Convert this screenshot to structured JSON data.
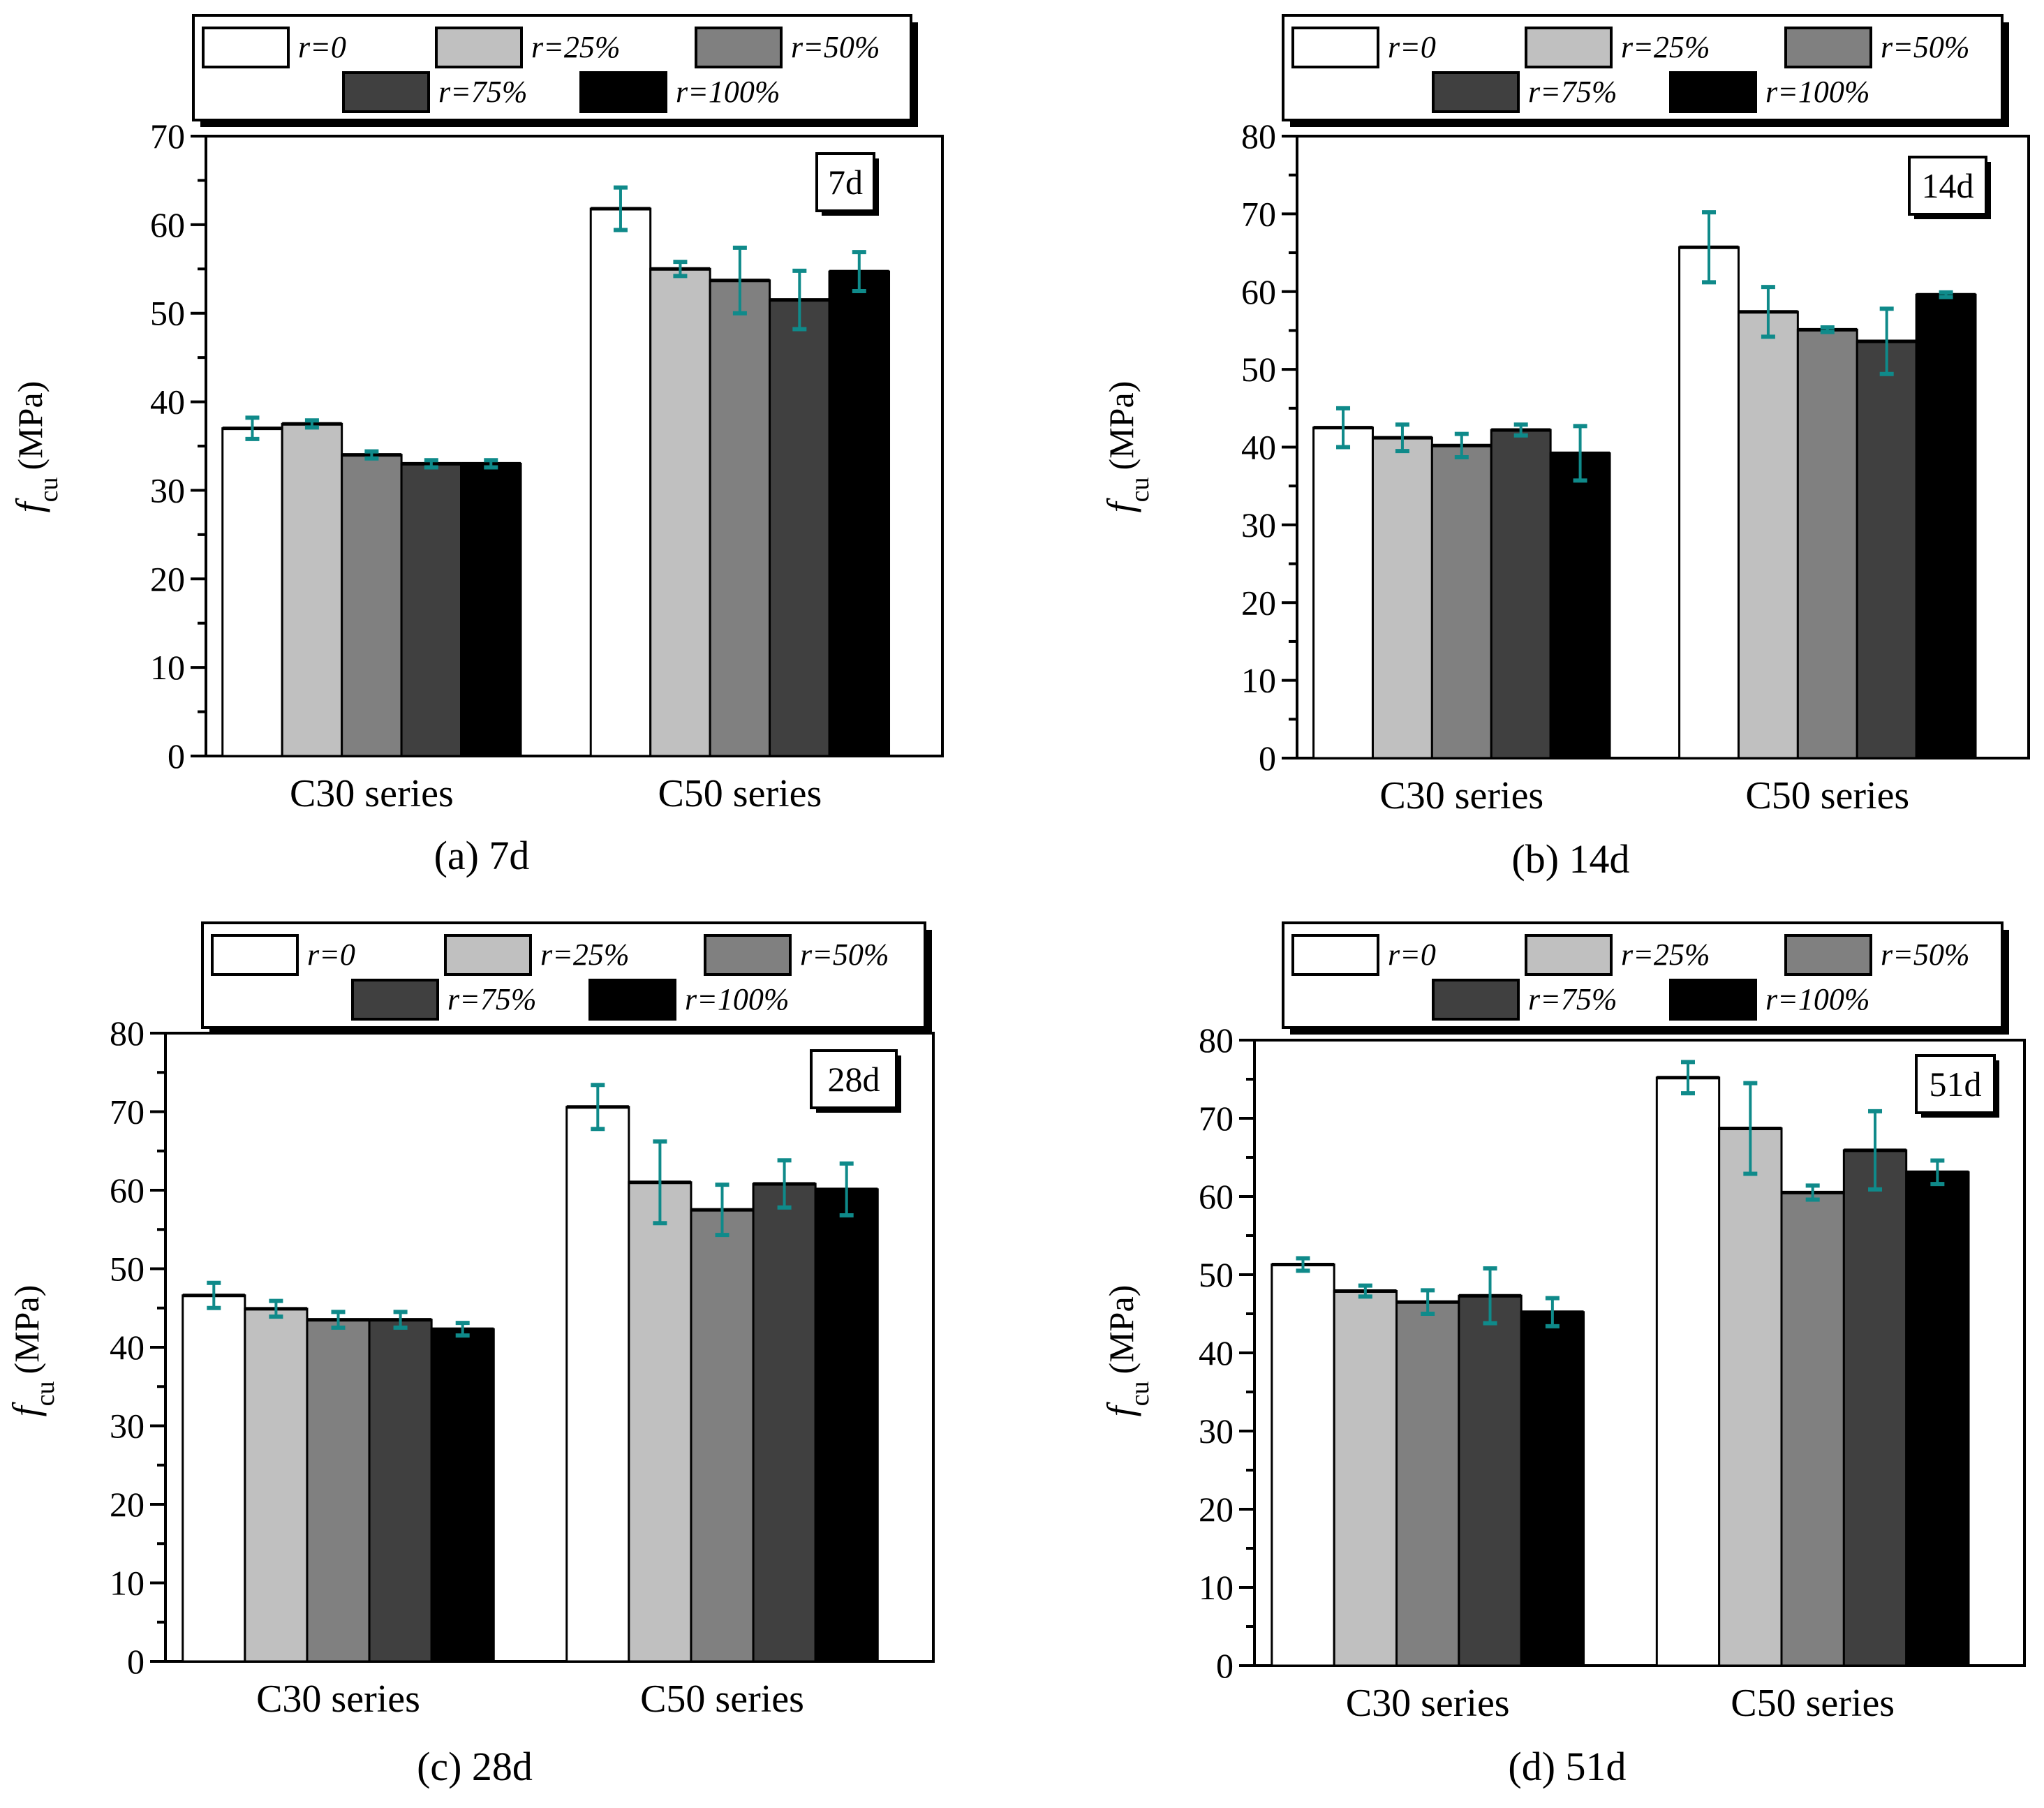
{
  "colors": {
    "series": [
      "#ffffff",
      "#c0c0c0",
      "#808080",
      "#404040",
      "#000000"
    ],
    "error_bar": "#0f8a8a",
    "axis": "#000000"
  },
  "chart_data": [
    {
      "type": "bar",
      "panel": "a",
      "caption": "(a) 7d",
      "age_label": "7d",
      "ylabel_symbol": "f",
      "ylabel_subscript": "cu",
      "ylabel_unit": "(MPa)",
      "ylim": [
        0,
        70
      ],
      "yticks": [
        0,
        10,
        20,
        30,
        40,
        50,
        60,
        70
      ],
      "legend_position": "top",
      "categories": [
        "C30 series",
        "C50 series"
      ],
      "series": [
        {
          "name": "r=0",
          "legend_var": "r",
          "legend_rest": "=0",
          "values": [
            37.0,
            61.8
          ],
          "errors": [
            1.2,
            2.4
          ]
        },
        {
          "name": "r=25%",
          "legend_var": "r",
          "legend_rest": "=25%",
          "values": [
            37.5,
            55.0
          ],
          "errors": [
            0.4,
            0.8
          ]
        },
        {
          "name": "r=50%",
          "legend_var": "r",
          "legend_rest": "=50%",
          "values": [
            34.0,
            53.7
          ],
          "errors": [
            0.4,
            3.7
          ]
        },
        {
          "name": "r=75%",
          "legend_var": "r",
          "legend_rest": "=75%",
          "values": [
            33.0,
            51.5
          ],
          "errors": [
            0.4,
            3.3
          ]
        },
        {
          "name": "r=100%",
          "legend_var": "r",
          "legend_rest": "=100%",
          "values": [
            33.0,
            54.7
          ],
          "errors": [
            0.4,
            2.2
          ]
        }
      ]
    },
    {
      "type": "bar",
      "panel": "b",
      "caption": "(b) 14d",
      "age_label": "14d",
      "ylabel_symbol": "f",
      "ylabel_subscript": "cu",
      "ylabel_unit": "(MPa)",
      "ylim": [
        0,
        80
      ],
      "yticks": [
        0,
        10,
        20,
        30,
        40,
        50,
        60,
        70,
        80
      ],
      "legend_position": "top",
      "categories": [
        "C30 series",
        "C50 series"
      ],
      "series": [
        {
          "name": "r=0",
          "legend_var": "r",
          "legend_rest": "=0",
          "values": [
            42.5,
            65.7
          ],
          "errors": [
            2.5,
            4.5
          ]
        },
        {
          "name": "r=25%",
          "legend_var": "r",
          "legend_rest": "=25%",
          "values": [
            41.2,
            57.4
          ],
          "errors": [
            1.7,
            3.2
          ]
        },
        {
          "name": "r=50%",
          "legend_var": "r",
          "legend_rest": "=50%",
          "values": [
            40.2,
            55.1
          ],
          "errors": [
            1.5,
            0.3
          ]
        },
        {
          "name": "r=75%",
          "legend_var": "r",
          "legend_rest": "=75%",
          "values": [
            42.2,
            53.6
          ],
          "errors": [
            0.7,
            4.2
          ]
        },
        {
          "name": "r=100%",
          "legend_var": "r",
          "legend_rest": "=100%",
          "values": [
            39.2,
            59.6
          ],
          "errors": [
            3.5,
            0.3
          ]
        }
      ]
    },
    {
      "type": "bar",
      "panel": "c",
      "caption": "(c) 28d",
      "age_label": "28d",
      "ylabel_symbol": "f",
      "ylabel_subscript": "cu",
      "ylabel_unit": "(MPa)",
      "ylim": [
        0,
        80
      ],
      "yticks": [
        0,
        10,
        20,
        30,
        40,
        50,
        60,
        70,
        80
      ],
      "legend_position": "top",
      "categories": [
        "C30 series",
        "C50 series"
      ],
      "series": [
        {
          "name": "r=0",
          "legend_var": "r",
          "legend_rest": "=0",
          "values": [
            46.6,
            70.6
          ],
          "errors": [
            1.6,
            2.8
          ]
        },
        {
          "name": "r=25%",
          "legend_var": "r",
          "legend_rest": "=25%",
          "values": [
            44.9,
            61.0
          ],
          "errors": [
            1.0,
            5.2
          ]
        },
        {
          "name": "r=50%",
          "legend_var": "r",
          "legend_rest": "=50%",
          "values": [
            43.5,
            57.5
          ],
          "errors": [
            1.0,
            3.2
          ]
        },
        {
          "name": "r=75%",
          "legend_var": "r",
          "legend_rest": "=75%",
          "values": [
            43.5,
            60.8
          ],
          "errors": [
            1.0,
            3.0
          ]
        },
        {
          "name": "r=100%",
          "legend_var": "r",
          "legend_rest": "=100%",
          "values": [
            42.3,
            60.1
          ],
          "errors": [
            0.8,
            3.3
          ]
        }
      ]
    },
    {
      "type": "bar",
      "panel": "d",
      "caption": "(d) 51d",
      "age_label": "51d",
      "ylabel_symbol": "f",
      "ylabel_subscript": "cu",
      "ylabel_unit": "(MPa)",
      "ylim": [
        0,
        80
      ],
      "yticks": [
        0,
        10,
        20,
        30,
        40,
        50,
        60,
        70,
        80
      ],
      "legend_position": "top",
      "categories": [
        "C30 series",
        "C50 series"
      ],
      "series": [
        {
          "name": "r=0",
          "legend_var": "r",
          "legend_rest": "=0",
          "values": [
            51.3,
            75.2
          ],
          "errors": [
            0.8,
            2.0
          ]
        },
        {
          "name": "r=25%",
          "legend_var": "r",
          "legend_rest": "=25%",
          "values": [
            47.9,
            68.7
          ],
          "errors": [
            0.7,
            5.8
          ]
        },
        {
          "name": "r=50%",
          "legend_var": "r",
          "legend_rest": "=50%",
          "values": [
            46.5,
            60.5
          ],
          "errors": [
            1.5,
            0.9
          ]
        },
        {
          "name": "r=75%",
          "legend_var": "r",
          "legend_rest": "=75%",
          "values": [
            47.3,
            65.9
          ],
          "errors": [
            3.5,
            5.0
          ]
        },
        {
          "name": "r=100%",
          "legend_var": "r",
          "legend_rest": "=100%",
          "values": [
            45.2,
            63.1
          ],
          "errors": [
            1.8,
            1.5
          ]
        }
      ]
    }
  ]
}
